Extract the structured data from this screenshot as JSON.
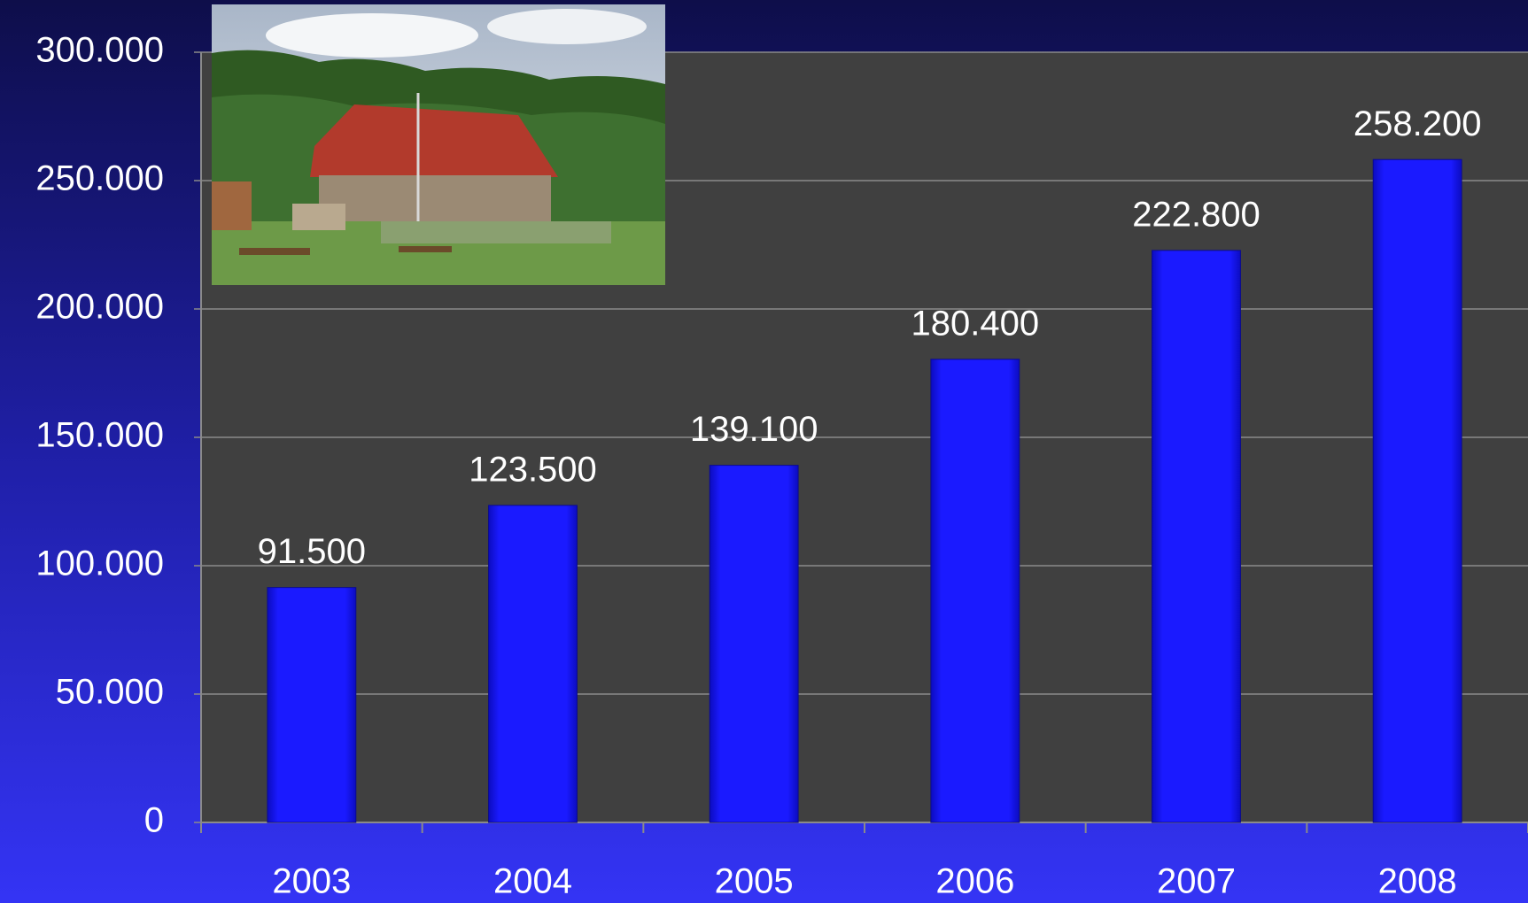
{
  "chart_data": {
    "type": "bar",
    "categories": [
      "2003",
      "2004",
      "2005",
      "2006",
      "2007",
      "2008"
    ],
    "values": [
      91500,
      123500,
      139100,
      180400,
      222800,
      258200
    ],
    "value_labels": [
      "91.500",
      "123.500",
      "139.100",
      "180.400",
      "222.800",
      "258.200"
    ],
    "color": "#1a1aff",
    "ylim": [
      0,
      300000
    ],
    "yticks": [
      0,
      {
        "value": 50000,
        "label": "50.000"
      },
      {
        "value": 100000,
        "label": "100.000"
      },
      {
        "value": 150000,
        "label": "150.000"
      },
      {
        "value": 200000,
        "label": "200.000"
      },
      {
        "value": 250000,
        "label": "250.000"
      },
      {
        "value": 300000,
        "label": "300.000"
      }
    ],
    "grid": true
  }
}
